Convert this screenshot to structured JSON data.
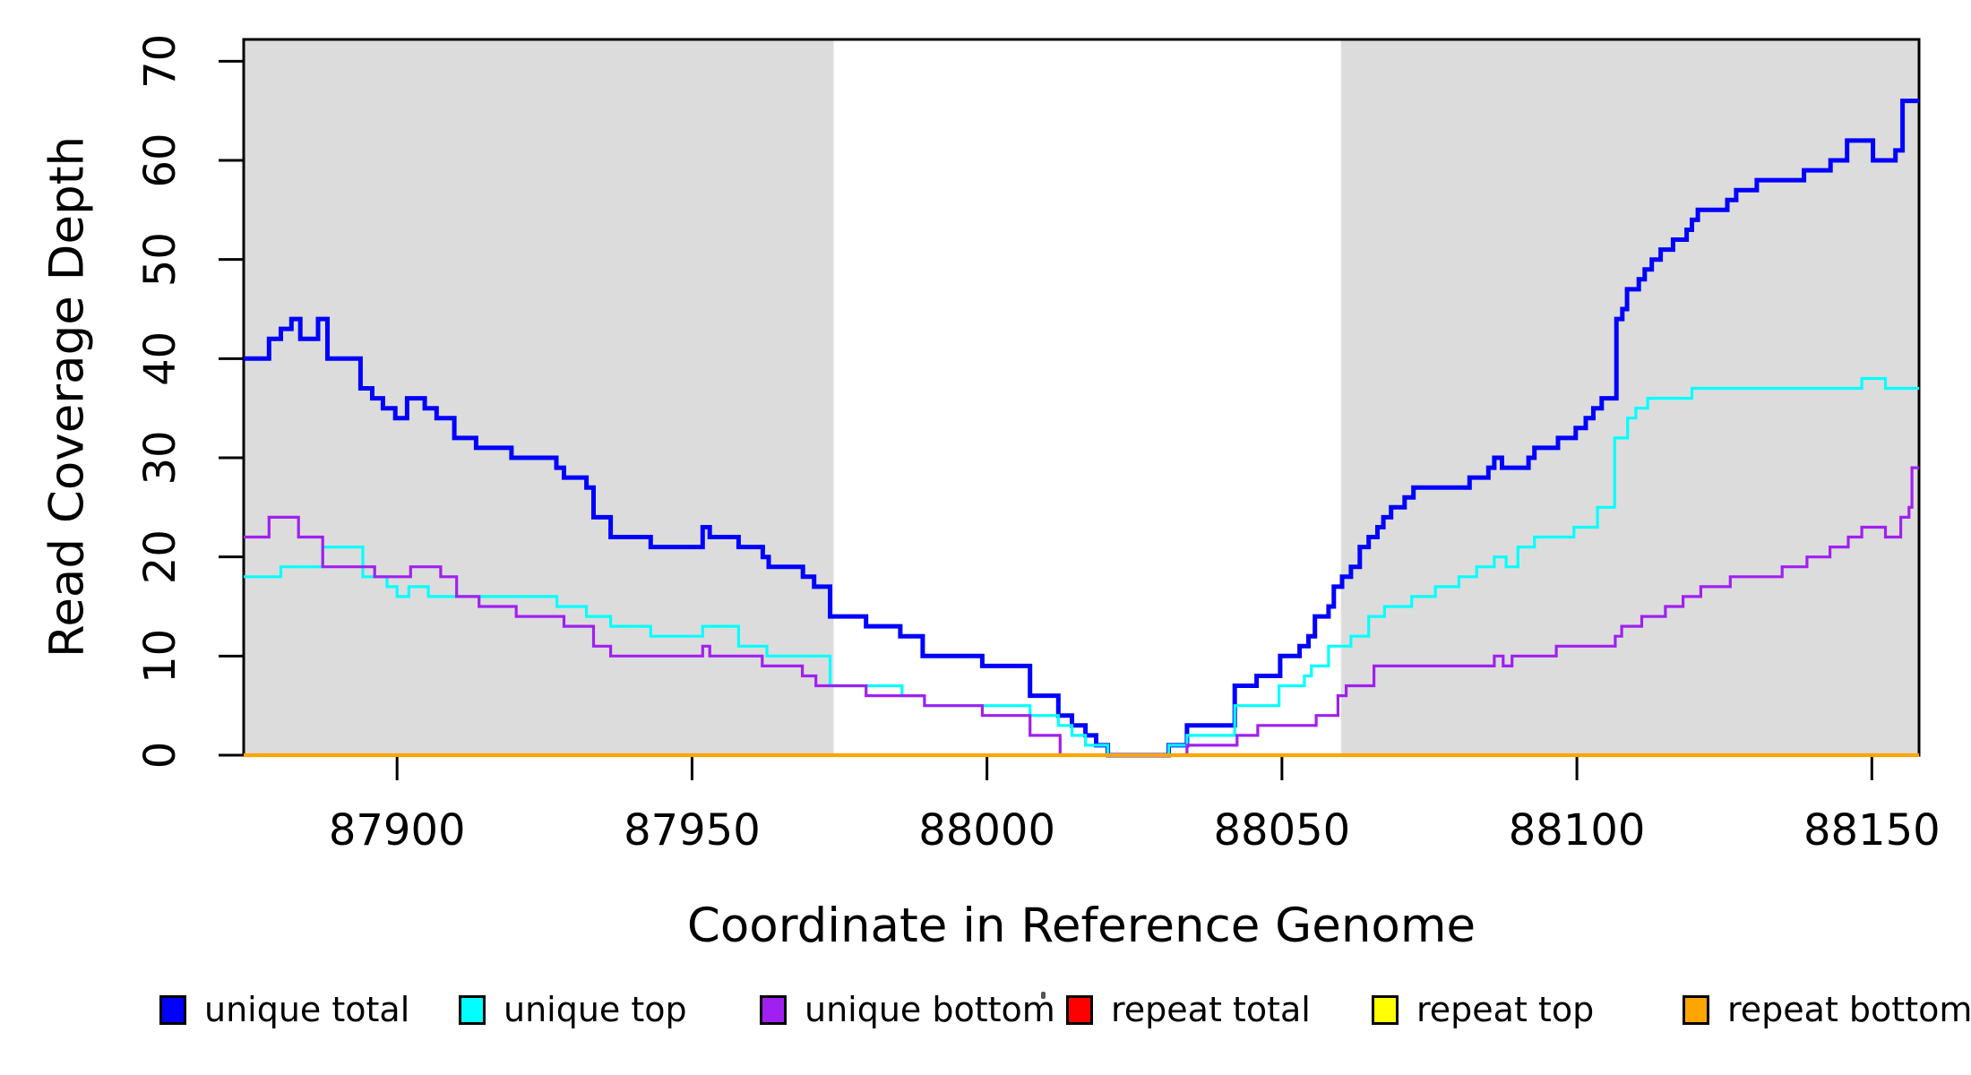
{
  "chart_data": {
    "type": "line",
    "subtype": "step-coverage-plot",
    "title": "",
    "xlabel": "Coordinate in Reference Genome",
    "ylabel": "Read Coverage Depth",
    "xlim": [
      87874,
      88158
    ],
    "ylim": [
      0,
      72.2
    ],
    "x_ticks": [
      87900,
      87950,
      88000,
      88050,
      88100,
      88150
    ],
    "y_ticks": [
      0,
      10,
      20,
      30,
      40,
      50,
      60,
      70
    ],
    "grid": false,
    "legend_position": "bottom",
    "colors": {
      "background": "#FFFFFF",
      "panel_shading": "#DCDCDC",
      "axis": "#000000",
      "unique_total": "#0000FF",
      "unique_top": "#00FFFF",
      "unique_bottom": "#A020F0",
      "repeat_total": "#FF0000",
      "repeat_top": "#FFFF00",
      "repeat_bottom": "#FFA500"
    },
    "shaded_regions": [
      {
        "x0": 87874,
        "x1": 87974,
        "color": "#DCDCDC"
      },
      {
        "x0": 88060,
        "x1": 88158,
        "color": "#DCDCDC"
      }
    ],
    "step_mode": "value-holds-until-next-x",
    "series": [
      {
        "name": "unique total",
        "color": "#0000FF",
        "line_width": 5,
        "points": [
          [
            87874,
            40
          ],
          [
            87878.3,
            42
          ],
          [
            87880.3,
            43
          ],
          [
            87882.1,
            44
          ],
          [
            87883.6,
            42
          ],
          [
            87886.6,
            44
          ],
          [
            87888.2,
            40
          ],
          [
            87893.8,
            37
          ],
          [
            87895.8,
            36
          ],
          [
            87897.6,
            35
          ],
          [
            87899.7,
            34
          ],
          [
            87901.7,
            36
          ],
          [
            87904.7,
            35
          ],
          [
            87906.7,
            34
          ],
          [
            87909.7,
            32
          ],
          [
            87913.4,
            31
          ],
          [
            87919.4,
            30
          ],
          [
            87927,
            29
          ],
          [
            87928.3,
            28
          ],
          [
            87932.1,
            27
          ],
          [
            87933.3,
            24
          ],
          [
            87936.2,
            22
          ],
          [
            87943,
            21
          ],
          [
            87951.8,
            23
          ],
          [
            87953,
            22
          ],
          [
            87957.9,
            21
          ],
          [
            87962,
            20
          ],
          [
            87963,
            19
          ],
          [
            87968.8,
            18
          ],
          [
            87970.7,
            17
          ],
          [
            87973.4,
            14
          ],
          [
            87979.5,
            13
          ],
          [
            87985.3,
            12
          ],
          [
            87989.1,
            10
          ],
          [
            87999.2,
            9
          ],
          [
            88007.3,
            6
          ],
          [
            88012.1,
            4
          ],
          [
            88014.4,
            3
          ],
          [
            88016.7,
            2
          ],
          [
            88018.5,
            1
          ],
          [
            88020.5,
            0
          ],
          [
            88030.8,
            1
          ],
          [
            88033.9,
            3
          ],
          [
            88042,
            7
          ],
          [
            88045.7,
            8
          ],
          [
            88049.7,
            10
          ],
          [
            88053,
            11
          ],
          [
            88054.5,
            12
          ],
          [
            88055.6,
            14
          ],
          [
            88057.9,
            15
          ],
          [
            88058.8,
            17
          ],
          [
            88060.2,
            18
          ],
          [
            88061.7,
            19
          ],
          [
            88063.2,
            21
          ],
          [
            88064.7,
            22
          ],
          [
            88066.2,
            23
          ],
          [
            88067.2,
            24
          ],
          [
            88068.5,
            25
          ],
          [
            88070.8,
            26
          ],
          [
            88072.3,
            27
          ],
          [
            88081.8,
            28
          ],
          [
            88085,
            29
          ],
          [
            88086,
            30
          ],
          [
            88087.3,
            29
          ],
          [
            88091.8,
            30
          ],
          [
            88092.8,
            31
          ],
          [
            88096.8,
            32
          ],
          [
            88099.8,
            33
          ],
          [
            88101.5,
            34
          ],
          [
            88102.8,
            35
          ],
          [
            88104.2,
            36
          ],
          [
            88106.7,
            44
          ],
          [
            88107.7,
            45
          ],
          [
            88108.5,
            47
          ],
          [
            88110.5,
            48
          ],
          [
            88111.5,
            49
          ],
          [
            88112.7,
            50
          ],
          [
            88114.2,
            51
          ],
          [
            88116.3,
            52
          ],
          [
            88118.6,
            53
          ],
          [
            88119.5,
            54
          ],
          [
            88120.5,
            55
          ],
          [
            88125.5,
            56
          ],
          [
            88127,
            57
          ],
          [
            88130.5,
            58
          ],
          [
            88138.5,
            59
          ],
          [
            88143,
            60
          ],
          [
            88145.8,
            62
          ],
          [
            88150.2,
            60
          ],
          [
            88154,
            61
          ],
          [
            88155.2,
            66
          ],
          [
            88158,
            66
          ]
        ]
      },
      {
        "name": "unique top",
        "color": "#00FFFF",
        "line_width": 3.2,
        "points": [
          [
            87874,
            18
          ],
          [
            87880.3,
            19
          ],
          [
            87887.4,
            21
          ],
          [
            87894.2,
            18
          ],
          [
            87898.3,
            17
          ],
          [
            87900,
            16
          ],
          [
            87902,
            17
          ],
          [
            87905.3,
            16
          ],
          [
            87927.1,
            15
          ],
          [
            87932.1,
            14
          ],
          [
            87936.2,
            13
          ],
          [
            87943,
            12
          ],
          [
            87951.8,
            13
          ],
          [
            87957.9,
            11
          ],
          [
            87962.7,
            10
          ],
          [
            87973.4,
            7
          ],
          [
            87985.6,
            6
          ],
          [
            87989.4,
            5
          ],
          [
            88007.3,
            4
          ],
          [
            88012.1,
            3
          ],
          [
            88014.4,
            2
          ],
          [
            88016.7,
            1
          ],
          [
            88020.5,
            0
          ],
          [
            88030.8,
            1
          ],
          [
            88033.9,
            2
          ],
          [
            88042,
            5
          ],
          [
            88049.5,
            7
          ],
          [
            88053.8,
            8
          ],
          [
            88055,
            9
          ],
          [
            88057.9,
            11
          ],
          [
            88061.7,
            12
          ],
          [
            88064.7,
            14
          ],
          [
            88067.4,
            15
          ],
          [
            88072,
            16
          ],
          [
            88076,
            17
          ],
          [
            88080,
            18
          ],
          [
            88083,
            19
          ],
          [
            88086,
            20
          ],
          [
            88088,
            19
          ],
          [
            88090,
            21
          ],
          [
            88092.8,
            22
          ],
          [
            88099.5,
            23
          ],
          [
            88103.5,
            25
          ],
          [
            88106.4,
            32
          ],
          [
            88108.6,
            34
          ],
          [
            88110,
            35
          ],
          [
            88112,
            36
          ],
          [
            88119.5,
            37
          ],
          [
            88148.3,
            38
          ],
          [
            88152.3,
            37
          ],
          [
            88158,
            37
          ]
        ]
      },
      {
        "name": "unique bottom",
        "color": "#A020F0",
        "line_width": 3.2,
        "points": [
          [
            87874,
            22
          ],
          [
            87878.3,
            24
          ],
          [
            87883.3,
            22
          ],
          [
            87887.4,
            19
          ],
          [
            87896.2,
            18
          ],
          [
            87902.3,
            19
          ],
          [
            87907.4,
            18
          ],
          [
            87910.1,
            16
          ],
          [
            87913.9,
            15
          ],
          [
            87920.2,
            14
          ],
          [
            87928.3,
            13
          ],
          [
            87933.3,
            11
          ],
          [
            87936.2,
            10
          ],
          [
            87951.8,
            11
          ],
          [
            87953,
            10
          ],
          [
            87961.9,
            9
          ],
          [
            87968.7,
            8
          ],
          [
            87971,
            7
          ],
          [
            87979.5,
            6
          ],
          [
            87989.4,
            5
          ],
          [
            87999.2,
            4
          ],
          [
            88007.3,
            2
          ],
          [
            88012.4,
            0
          ],
          [
            88033.9,
            1
          ],
          [
            88042.4,
            2
          ],
          [
            88045.9,
            3
          ],
          [
            88055.8,
            4
          ],
          [
            88059.5,
            6
          ],
          [
            88060.9,
            7
          ],
          [
            88065.6,
            9
          ],
          [
            88086,
            10
          ],
          [
            88087.5,
            9
          ],
          [
            88089,
            10
          ],
          [
            88096.5,
            11
          ],
          [
            88106.5,
            12
          ],
          [
            88107.6,
            13
          ],
          [
            88111,
            14
          ],
          [
            88115,
            15
          ],
          [
            88118,
            16
          ],
          [
            88121,
            17
          ],
          [
            88126,
            18
          ],
          [
            88134.8,
            19
          ],
          [
            88139,
            20
          ],
          [
            88142.9,
            21
          ],
          [
            88146,
            22
          ],
          [
            88148.3,
            23
          ],
          [
            88152.3,
            22
          ],
          [
            88154.9,
            24
          ],
          [
            88156.3,
            25
          ],
          [
            88156.8,
            29
          ],
          [
            88158,
            29
          ]
        ]
      },
      {
        "name": "repeat total",
        "color": "#FF0000",
        "line_width": 3.2,
        "points": [
          [
            87874,
            0
          ],
          [
            88158,
            0
          ]
        ]
      },
      {
        "name": "repeat top",
        "color": "#FFFF00",
        "line_width": 3.2,
        "points": [
          [
            87874,
            0
          ],
          [
            88158,
            0
          ]
        ]
      },
      {
        "name": "repeat bottom",
        "color": "#FFA500",
        "line_width": 4.2,
        "points": [
          [
            87874,
            0
          ],
          [
            88158,
            0
          ]
        ]
      }
    ],
    "legend_entries": [
      {
        "label": "unique total",
        "color": "#0000FF"
      },
      {
        "label": "unique top",
        "color": "#00FFFF"
      },
      {
        "label": "unique bottom",
        "color": "#A020F0"
      },
      {
        "label": "repeat total",
        "color": "#FF0000"
      },
      {
        "label": "repeat top",
        "color": "#FFFF00"
      },
      {
        "label": "repeat bottom",
        "color": "#FFA500"
      }
    ]
  }
}
